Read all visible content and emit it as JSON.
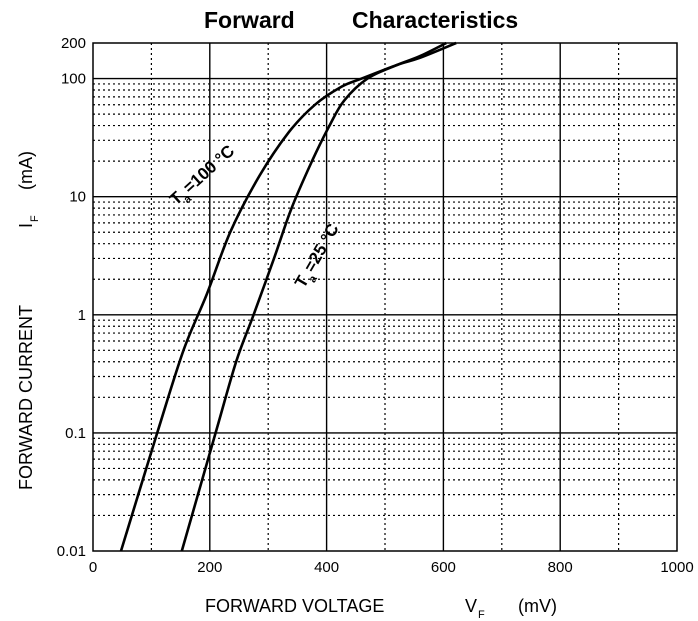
{
  "chart_data": {
    "type": "line",
    "title_words": [
      "Forward",
      "Characteristics"
    ],
    "xlabel": {
      "text": "FORWARD VOLTAGE",
      "symbol": "V",
      "subscript": "F",
      "unit": "(mV)"
    },
    "ylabel": {
      "text": "FORWARD CURRENT",
      "symbol": "I",
      "subscript": "F",
      "unit": "(mA)"
    },
    "x_scale": "linear",
    "y_scale": "log",
    "xlim": [
      0,
      1000
    ],
    "ylim": [
      0.01,
      200
    ],
    "x_ticks": [
      0,
      200,
      400,
      600,
      800,
      1000
    ],
    "x_tick_labels": [
      "0",
      "200",
      "400",
      "600",
      "800",
      "1000"
    ],
    "y_ticks": [
      0.01,
      0.1,
      1,
      10,
      100,
      200
    ],
    "y_tick_labels": [
      "0.01",
      "0.1",
      "1",
      "10",
      "100",
      "200"
    ],
    "grid": true,
    "series": [
      {
        "annotation": {
          "prefix": "T",
          "sub": "a",
          "suffix": "=100 °C"
        },
        "x": [
          48,
          110,
          155,
          195,
          235,
          285,
          335,
          380,
          425,
          460,
          520,
          560,
          622
        ],
        "y": [
          0.01,
          0.1,
          0.5,
          1.5,
          5,
          15,
          35,
          60,
          85,
          100,
          130,
          150,
          200
        ]
      },
      {
        "annotation": {
          "prefix": "T",
          "sub": "a",
          "suffix": "=25 °C"
        },
        "x": [
          152,
          210,
          245,
          275,
          310,
          340,
          375,
          405,
          430,
          470,
          520,
          560,
          605
        ],
        "y": [
          0.01,
          0.1,
          0.4,
          1,
          3,
          8,
          20,
          40,
          65,
          100,
          130,
          155,
          200
        ]
      }
    ]
  }
}
